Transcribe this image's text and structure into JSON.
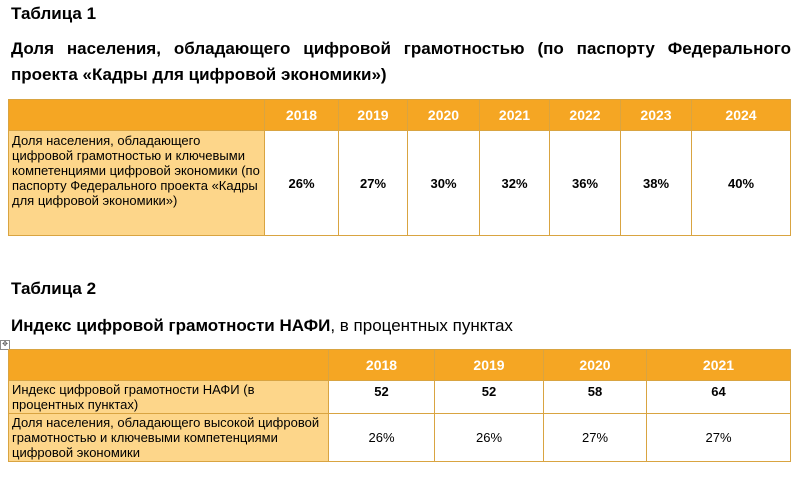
{
  "table1": {
    "caption": "Таблица 1",
    "subtitle": "Доля населения, обладающего цифровой грамотностью (по паспорту Федерального проекта «Кадры для цифровой экономики»)",
    "years": [
      "2018",
      "2019",
      "2020",
      "2021",
      "2022",
      "2023",
      "2024"
    ],
    "rows": [
      {
        "label": "Доля населения, обладающего цифровой грамотностью и ключевыми компетенциями цифровой экономики (по паспорту Федерального проекта «Кадры для цифровой экономики»)",
        "values": [
          "26%",
          "27%",
          "30%",
          "32%",
          "36%",
          "38%",
          "40%"
        ]
      }
    ]
  },
  "table2": {
    "caption": "Таблица 2",
    "subtitle_bold": "Индекс цифровой грамотности НАФИ",
    "subtitle_rest": ", в процентных пунктах",
    "years": [
      "2018",
      "2019",
      "2020",
      "2021"
    ],
    "rows": [
      {
        "label": "Индекс цифровой грамотности НАФИ (в процентных пунктах)",
        "values": [
          "52",
          "52",
          "58",
          "64"
        ]
      },
      {
        "label": "Доля населения, обладающего высокой цифровой грамотностью и ключевыми компетенциями цифровой экономики",
        "values": [
          "26%",
          "26%",
          "27%",
          "27%"
        ]
      }
    ]
  },
  "icons": {
    "table_anchor": "move-handle-icon"
  }
}
